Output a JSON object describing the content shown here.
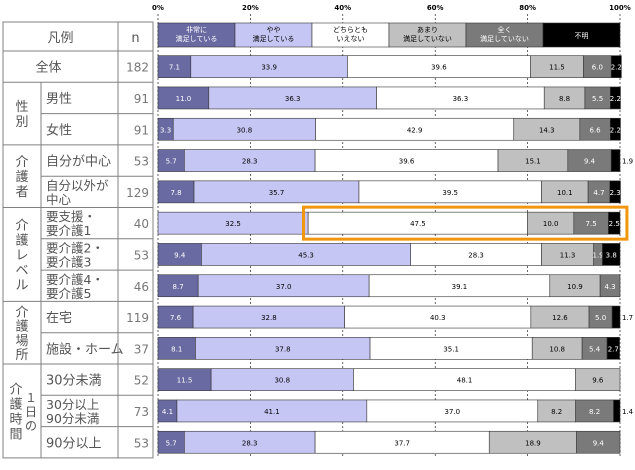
{
  "chart_data": {
    "type": "bar",
    "orientation": "horizontal",
    "stacked": true,
    "xlim": [
      0,
      100
    ],
    "x_ticks": [
      "0%",
      "20%",
      "40%",
      "60%",
      "80%",
      "100%"
    ],
    "header": {
      "legend_label": "凡例",
      "n_label": "n"
    },
    "series": [
      {
        "name": "非常に満足している",
        "lines": [
          "非常に",
          "満足している"
        ],
        "color": "#6a6aa3",
        "text_color": "#ffffff"
      },
      {
        "name": "やや満足している",
        "lines": [
          "やや",
          "満足している"
        ],
        "color": "#c6c6f4",
        "text_color": "#000000"
      },
      {
        "name": "どちらともいえない",
        "lines": [
          "どちらとも",
          "いえない"
        ],
        "color": "#ffffff",
        "text_color": "#000000"
      },
      {
        "name": "あまり満足していない",
        "lines": [
          "あまり",
          "満足していない"
        ],
        "color": "#c0c0c0",
        "text_color": "#000000"
      },
      {
        "name": "全く満足していない",
        "lines": [
          "全く",
          "満足していない"
        ],
        "color": "#7a7a7a",
        "text_color": "#ffffff"
      },
      {
        "name": "不明",
        "lines": [
          "不明"
        ],
        "color": "#000000",
        "text_color": "#ffffff"
      }
    ],
    "groups": [
      {
        "label": "",
        "label_chars": []
      },
      {
        "label": "性別",
        "label_chars": [
          "性",
          "別"
        ]
      },
      {
        "label": "介護者",
        "label_chars": [
          "介",
          "護",
          "者"
        ]
      },
      {
        "label": "介護レベル",
        "label_chars": [
          "介",
          "護",
          "レ",
          "ベ",
          "ル"
        ]
      },
      {
        "label": "介護場所",
        "label_chars": [
          "介",
          "護",
          "場",
          "所"
        ]
      },
      {
        "label": "介護時間",
        "label_chars": [
          "介",
          "護",
          "時",
          "間"
        ],
        "sub_label_chars": [
          "１",
          "日",
          "の"
        ]
      }
    ],
    "rows": [
      {
        "group": 0,
        "category": "全体",
        "lines": [
          "全体"
        ],
        "n": "182",
        "values": [
          7.1,
          33.9,
          39.6,
          11.5,
          6.0,
          2.2
        ],
        "labels": [
          "7.1",
          "33.9",
          "39.6",
          "11.5",
          "6.0",
          "2.2"
        ]
      },
      {
        "group": 1,
        "category": "男性",
        "lines": [
          "男性"
        ],
        "n": "91",
        "values": [
          11.0,
          36.3,
          36.3,
          8.8,
          5.5,
          2.2
        ],
        "labels": [
          "11.0",
          "36.3",
          "36.3",
          "8.8",
          "5.5",
          "2.2"
        ]
      },
      {
        "group": 1,
        "category": "女性",
        "lines": [
          "女性"
        ],
        "n": "91",
        "values": [
          3.3,
          30.8,
          42.9,
          14.3,
          6.6,
          2.2
        ],
        "labels": [
          "3.3",
          "30.8",
          "42.9",
          "14.3",
          "6.6",
          "2.2"
        ]
      },
      {
        "group": 2,
        "category": "自分が中心",
        "lines": [
          "自分が中心"
        ],
        "n": "53",
        "values": [
          5.7,
          28.3,
          39.6,
          15.1,
          9.4,
          1.9
        ],
        "labels": [
          "5.7",
          "28.3",
          "39.6",
          "15.1",
          "9.4",
          "1.9"
        ]
      },
      {
        "group": 2,
        "category": "自分以外が中心",
        "lines": [
          "自分以外が",
          "中心"
        ],
        "n": "129",
        "values": [
          7.8,
          35.7,
          39.5,
          10.1,
          4.7,
          2.3
        ],
        "labels": [
          "7.8",
          "35.7",
          "39.5",
          "10.1",
          "4.7",
          "2.3"
        ]
      },
      {
        "group": 3,
        "category": "要支援・要介護1",
        "lines": [
          "要支援・",
          "要介護1"
        ],
        "n": "40",
        "values": [
          0.0,
          32.5,
          47.5,
          10.0,
          7.5,
          2.5
        ],
        "labels": [
          "",
          "32.5",
          "47.5",
          "10.0",
          "7.5",
          "2.5"
        ],
        "highlight": true
      },
      {
        "group": 3,
        "category": "要介護2・要介護3",
        "lines": [
          "要介護2・",
          "要介護3"
        ],
        "n": "53",
        "values": [
          9.4,
          45.3,
          28.3,
          11.3,
          1.9,
          3.8
        ],
        "labels": [
          "9.4",
          "45.3",
          "28.3",
          "11.3",
          "1.9",
          "3.8"
        ]
      },
      {
        "group": 3,
        "category": "要介護4・要介護5",
        "lines": [
          "要介護4・",
          "要介護5"
        ],
        "n": "46",
        "values": [
          8.7,
          37.0,
          39.1,
          10.9,
          4.3,
          0.0
        ],
        "labels": [
          "8.7",
          "37.0",
          "39.1",
          "10.9",
          "4.3",
          ""
        ]
      },
      {
        "group": 4,
        "category": "在宅",
        "lines": [
          "在宅"
        ],
        "n": "119",
        "values": [
          7.6,
          32.8,
          40.3,
          12.6,
          5.0,
          1.7
        ],
        "labels": [
          "7.6",
          "32.8",
          "40.3",
          "12.6",
          "5.0",
          "1.7"
        ]
      },
      {
        "group": 4,
        "category": "施設・ホーム",
        "lines": [
          "施設・ホーム"
        ],
        "n": "37",
        "values": [
          8.1,
          37.8,
          35.1,
          10.8,
          5.4,
          2.7
        ],
        "labels": [
          "8.1",
          "37.8",
          "35.1",
          "10.8",
          "5.4",
          "2.7"
        ]
      },
      {
        "group": 5,
        "category": "30分未満",
        "lines": [
          "30分未満"
        ],
        "n": "52",
        "values": [
          11.5,
          30.8,
          48.1,
          9.6,
          0.0,
          0.0
        ],
        "labels": [
          "11.5",
          "30.8",
          "48.1",
          "9.6",
          "",
          ""
        ]
      },
      {
        "group": 5,
        "category": "30分以上90分未満",
        "lines": [
          "30分以上",
          "90分未満"
        ],
        "n": "73",
        "values": [
          4.1,
          41.1,
          37.0,
          8.2,
          8.2,
          1.4
        ],
        "labels": [
          "4.1",
          "41.1",
          "37.0",
          "8.2",
          "8.2",
          "1.4"
        ]
      },
      {
        "group": 5,
        "category": "90分以上",
        "lines": [
          "90分以上"
        ],
        "n": "53",
        "values": [
          5.7,
          28.3,
          37.7,
          18.9,
          9.4,
          0.0
        ],
        "labels": [
          "5.7",
          "28.3",
          "37.7",
          "18.9",
          "9.4",
          ""
        ]
      }
    ],
    "highlight_color": "#f0960f"
  }
}
